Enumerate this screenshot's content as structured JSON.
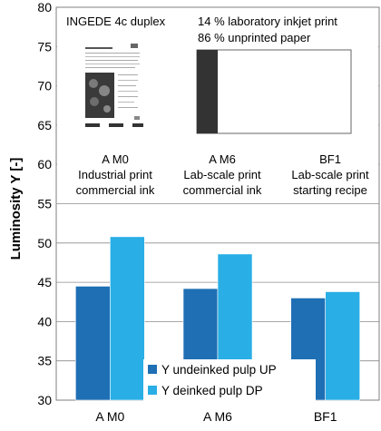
{
  "chart_data": {
    "type": "bar",
    "ylabel": "Luminosity Y [-]",
    "ylim": [
      30,
      80
    ],
    "yticks": [
      30,
      35,
      40,
      45,
      50,
      55,
      60,
      65,
      70,
      75,
      80
    ],
    "categories": [
      "A M0",
      "A M6",
      "BF1"
    ],
    "series": [
      {
        "name": "Y undeinked pulp UP",
        "color": "#1f6fb4",
        "values": [
          44.5,
          44.2,
          43.0
        ]
      },
      {
        "name": "Y deinked pulp DP",
        "color": "#29aee6",
        "values": [
          50.8,
          48.6,
          43.8
        ]
      }
    ],
    "grid": true,
    "legend_position": "bottom-center",
    "annotations": {
      "inset_title": "INGEDE 4c duplex",
      "inset_note_line1": "14 % laboratory inkjet print",
      "inset_note_line2": "86 % unprinted paper",
      "samples": [
        {
          "code": "A M0",
          "line1": "Industrial print",
          "line2": "commercial ink"
        },
        {
          "code": "A M6",
          "line1": "Lab-scale print",
          "line2": "commercial ink"
        },
        {
          "code": "BF1",
          "line1": "Lab-scale print",
          "line2": "starting recipe"
        }
      ]
    }
  }
}
